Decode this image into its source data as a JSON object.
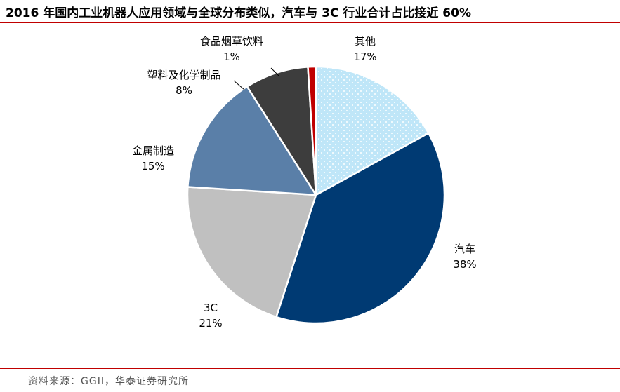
{
  "title": "2016 年国内工业机器人应用领域与全球分布类似，汽车与 3C 行业合计占比接近 60%",
  "source": "资料来源：GGII，华泰证券研究所",
  "chart_data": {
    "type": "pie",
    "start": "12 o'clock",
    "direction": "clockwise",
    "slices": [
      {
        "name": "其他",
        "value": 17,
        "label": "17%",
        "color": "#bfe6f8",
        "pattern": "dots"
      },
      {
        "name": "汽车",
        "value": 38,
        "label": "38%",
        "color": "#003a73"
      },
      {
        "name": "3C",
        "value": 21,
        "label": "21%",
        "color": "#c0c0c0"
      },
      {
        "name": "金属制造",
        "value": 15,
        "label": "15%",
        "color": "#5a7fa8"
      },
      {
        "name": "塑料及化学制品",
        "value": 8,
        "label": "8%",
        "color": "#3d3d3d"
      },
      {
        "name": "食品烟草饮料",
        "value": 1,
        "label": "1%",
        "color": "#c00000"
      }
    ]
  }
}
